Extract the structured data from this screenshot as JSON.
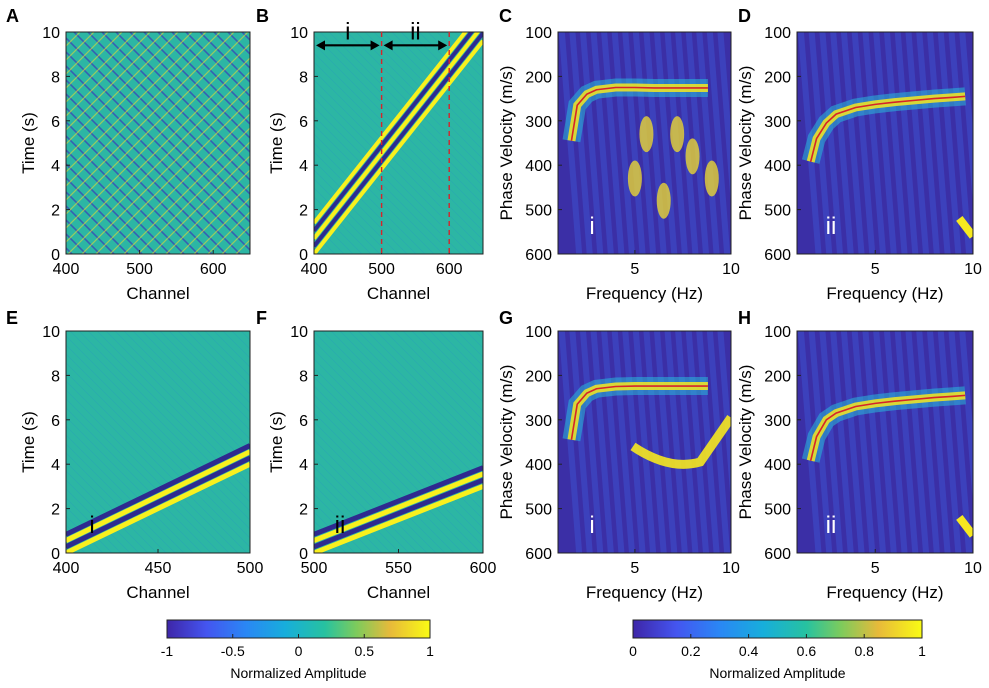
{
  "chart_data": [
    {
      "id": "A",
      "type": "heatmap",
      "panel_label": "A",
      "xlabel": "Channel",
      "ylabel": "Time (s)",
      "xlim": [
        400,
        650
      ],
      "ylim": [
        10,
        0
      ],
      "xticks": [
        400,
        500,
        600
      ],
      "yticks": [
        0,
        2,
        4,
        6,
        8,
        10
      ],
      "colormap": "parula",
      "color_range": [
        -1,
        1
      ],
      "description_values": {
        "pattern": "crossing noise"
      }
    },
    {
      "id": "B",
      "type": "heatmap",
      "panel_label": "B",
      "xlabel": "Channel",
      "ylabel": "Time (s)",
      "xlim": [
        400,
        650
      ],
      "ylim": [
        10,
        0
      ],
      "xticks": [
        400,
        500,
        600
      ],
      "yticks": [
        0,
        2,
        4,
        6,
        8,
        10
      ],
      "colormap": "parula",
      "color_range": [
        -1,
        1
      ],
      "wavefront": [
        [
          400,
          0.0
        ],
        [
          650,
          9.6
        ]
      ],
      "dashed_lines": [
        500,
        600
      ],
      "segments": [
        {
          "label": "i",
          "from": 400,
          "to": 500,
          "y": 9.4
        },
        {
          "label": "ii",
          "from": 500,
          "to": 600,
          "y": 9.4
        }
      ]
    },
    {
      "id": "C",
      "type": "heatmap",
      "panel_label": "C",
      "inner_label": "i",
      "xlabel": "Frequency (Hz)",
      "ylabel": "Phase Velocity (m/s)",
      "xlim": [
        1,
        10
      ],
      "ylim": [
        100,
        600
      ],
      "xticks": [
        5,
        10
      ],
      "yticks": [
        100,
        200,
        300,
        400,
        500,
        600
      ],
      "colormap": "parula",
      "color_range": [
        0,
        1
      ],
      "dispersion_curve": {
        "x": [
          1.7,
          2.0,
          2.5,
          3.0,
          4.0,
          5.0,
          6.0,
          7.0,
          8.0,
          8.8
        ],
        "y": [
          345,
          265,
          240,
          230,
          225,
          225,
          226,
          226,
          226,
          226
        ]
      }
    },
    {
      "id": "D",
      "type": "heatmap",
      "panel_label": "D",
      "inner_label": "ii",
      "xlabel": "Frequency (Hz)",
      "ylabel": "Phase Velocity (m/s)",
      "xlim": [
        1,
        10
      ],
      "ylim": [
        100,
        600
      ],
      "xticks": [
        5,
        10
      ],
      "yticks": [
        100,
        200,
        300,
        400,
        500,
        600
      ],
      "colormap": "parula",
      "color_range": [
        0,
        1
      ],
      "dispersion_curve": {
        "x": [
          1.7,
          2.0,
          2.5,
          3.0,
          4.0,
          5.0,
          6.0,
          7.0,
          8.0,
          9.0,
          9.6
        ],
        "y": [
          392,
          340,
          305,
          285,
          270,
          263,
          258,
          254,
          250,
          247,
          245
        ]
      }
    },
    {
      "id": "E",
      "type": "heatmap",
      "panel_label": "E",
      "inner_label": "i",
      "xlabel": "Channel",
      "ylabel": "Time (s)",
      "xlim": [
        400,
        500
      ],
      "ylim": [
        10,
        0
      ],
      "xticks": [
        400,
        450,
        500
      ],
      "yticks": [
        0,
        2,
        4,
        6,
        8,
        10
      ],
      "colormap": "parula",
      "color_range": [
        -1,
        1
      ],
      "wavefront": [
        [
          400,
          0.0
        ],
        [
          500,
          4.0
        ]
      ]
    },
    {
      "id": "F",
      "type": "heatmap",
      "panel_label": "F",
      "inner_label": "ii",
      "xlabel": "Channel",
      "ylabel": "Time (s)",
      "xlim": [
        500,
        600
      ],
      "ylim": [
        10,
        0
      ],
      "xticks": [
        500,
        550,
        600
      ],
      "yticks": [
        0,
        2,
        4,
        6,
        8,
        10
      ],
      "colormap": "parula",
      "color_range": [
        -1,
        1
      ],
      "wavefront": [
        [
          500,
          0.0
        ],
        [
          600,
          3.0
        ]
      ]
    },
    {
      "id": "G",
      "type": "heatmap",
      "panel_label": "G",
      "inner_label": "i",
      "xlabel": "Frequency (Hz)",
      "ylabel": "Phase Velocity (m/s)",
      "xlim": [
        1,
        10
      ],
      "ylim": [
        100,
        600
      ],
      "xticks": [
        5,
        10
      ],
      "yticks": [
        100,
        200,
        300,
        400,
        500,
        600
      ],
      "colormap": "parula",
      "color_range": [
        0,
        1
      ],
      "dispersion_curve": {
        "x": [
          1.7,
          2.0,
          2.5,
          3.0,
          4.0,
          5.0,
          6.0,
          7.0,
          8.0,
          8.8
        ],
        "y": [
          345,
          265,
          240,
          230,
          225,
          224,
          224,
          224,
          224,
          224
        ]
      }
    },
    {
      "id": "H",
      "type": "heatmap",
      "panel_label": "H",
      "inner_label": "ii",
      "xlabel": "Frequency (Hz)",
      "ylabel": "Phase Velocity (m/s)",
      "xlim": [
        1,
        10
      ],
      "ylim": [
        100,
        600
      ],
      "xticks": [
        5,
        10
      ],
      "yticks": [
        100,
        200,
        300,
        400,
        500,
        600
      ],
      "colormap": "parula",
      "color_range": [
        0,
        1
      ],
      "dispersion_curve": {
        "x": [
          1.7,
          2.0,
          2.5,
          3.0,
          4.0,
          5.0,
          6.0,
          7.0,
          8.0,
          9.0,
          9.6
        ],
        "y": [
          392,
          338,
          300,
          285,
          270,
          263,
          258,
          254,
          250,
          247,
          245
        ]
      }
    }
  ],
  "colorbars": [
    {
      "id": "left",
      "label": "Normalized Amplitude",
      "ticks": [
        "-1",
        "-0.5",
        "0",
        "0.5",
        "1"
      ]
    },
    {
      "id": "right",
      "label": "Normalized Amplitude",
      "ticks": [
        "0",
        "0.2",
        "0.4",
        "0.6",
        "0.8",
        "1"
      ]
    }
  ],
  "colors": {
    "background": "#3B2FA0",
    "mid": "#27B8A6",
    "high": "#F6E81F",
    "curve": "#D6232A",
    "dashed": "#D6232A"
  }
}
